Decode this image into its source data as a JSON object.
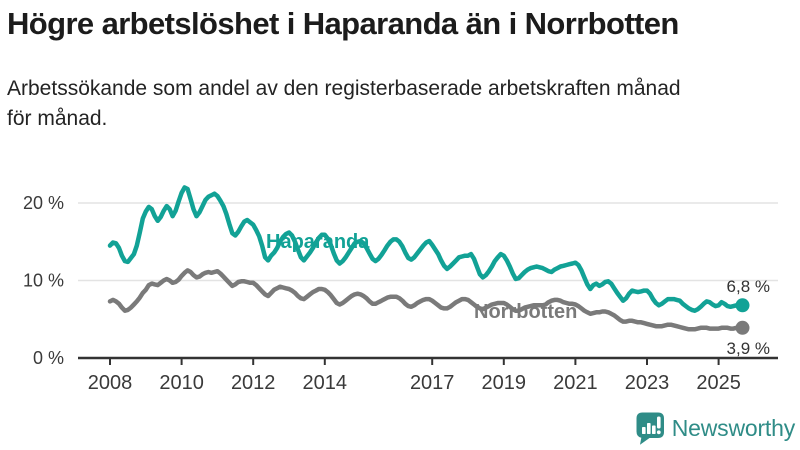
{
  "header": {
    "title": "Högre arbetslöshet i Haparanda än i Norrbotten",
    "subtitle_line1": "Arbetssökande som andel av den registerbaserade arbetskraften månad",
    "subtitle_line2": "för månad."
  },
  "footer": {
    "brand": "Newsworthy",
    "brand_color": "#2f8c87",
    "logo_icon": "newsworthy-speech-bubble-bar-chart"
  },
  "chart_data": {
    "type": "line",
    "title": "Högre arbetslöshet i Haparanda än i Norrbotten",
    "subtitle": "Arbetssökande som andel av den registerbaserade arbetskraften månad för månad.",
    "unit": "%",
    "x_frequency": "monthly",
    "x_start": "2008-01",
    "x_end": "2025-09",
    "ylim": [
      0,
      24
    ],
    "grid": "horizontal",
    "colors": {
      "haparanda": "#12a296",
      "norrbotten": "#7a7a7a",
      "gridline": "#e3e3e3",
      "axis": "#333333"
    },
    "y_ticks": [
      {
        "label": "20 %",
        "value": 20
      },
      {
        "label": "10 %",
        "value": 10
      },
      {
        "label": "0 %",
        "value": 0
      }
    ],
    "x_ticks": [
      {
        "label": "2008",
        "year": 2008
      },
      {
        "label": "2010",
        "year": 2010
      },
      {
        "label": "2012",
        "year": 2012
      },
      {
        "label": "2014",
        "year": 2014
      },
      {
        "label": "2017",
        "year": 2017
      },
      {
        "label": "2019",
        "year": 2019
      },
      {
        "label": "2021",
        "year": 2021
      },
      {
        "label": "2023",
        "year": 2023
      },
      {
        "label": "2025",
        "year": 2025
      }
    ],
    "series": [
      {
        "name": "Haparanda",
        "color": "#12a296",
        "end_label": "6,8 %",
        "end_value": 6.8,
        "values": [
          14.5,
          14.9,
          14.8,
          14.2,
          13.2,
          12.5,
          12.4,
          12.9,
          13.4,
          14.5,
          16.2,
          18.0,
          18.9,
          19.5,
          19.2,
          18.3,
          17.7,
          18.2,
          19.0,
          19.6,
          19.2,
          18.3,
          19.0,
          20.2,
          21.3,
          22.0,
          21.8,
          20.5,
          19.2,
          18.3,
          18.8,
          19.6,
          20.4,
          20.8,
          21.0,
          21.2,
          20.9,
          20.3,
          19.6,
          18.6,
          17.3,
          16.1,
          15.8,
          16.3,
          17.0,
          17.6,
          17.8,
          17.5,
          17.2,
          16.5,
          15.7,
          14.5,
          13.0,
          12.6,
          13.2,
          13.6,
          14.2,
          15.0,
          15.6,
          16.0,
          16.2,
          15.8,
          15.0,
          14.0,
          13.0,
          12.6,
          13.1,
          13.6,
          14.2,
          14.9,
          15.5,
          15.9,
          15.9,
          15.4,
          14.6,
          13.5,
          12.6,
          12.2,
          12.5,
          13.0,
          13.6,
          14.2,
          14.8,
          15.0,
          15.1,
          14.8,
          14.2,
          13.5,
          12.8,
          12.5,
          12.8,
          13.3,
          13.9,
          14.5,
          15.0,
          15.3,
          15.3,
          15.0,
          14.4,
          13.6,
          12.9,
          12.7,
          13.0,
          13.5,
          14.0,
          14.5,
          14.9,
          15.1,
          14.6,
          14.0,
          13.4,
          12.6,
          11.9,
          11.5,
          11.8,
          12.2,
          12.6,
          13.0,
          13.1,
          13.2,
          13.2,
          13.4,
          12.8,
          11.8,
          10.8,
          10.4,
          10.7,
          11.2,
          11.8,
          12.5,
          13.0,
          13.4,
          13.2,
          12.6,
          11.8,
          10.9,
          10.2,
          10.3,
          10.7,
          11.1,
          11.4,
          11.6,
          11.7,
          11.8,
          11.7,
          11.6,
          11.4,
          11.2,
          11.1,
          11.4,
          11.6,
          11.8,
          11.9,
          12.0,
          12.1,
          12.2,
          12.3,
          12.0,
          11.3,
          10.4,
          9.5,
          8.9,
          9.4,
          9.6,
          9.3,
          9.5,
          9.8,
          9.9,
          9.6,
          9.0,
          8.4,
          7.9,
          7.4,
          7.7,
          8.3,
          8.7,
          8.6,
          8.5,
          8.6,
          8.7,
          8.7,
          8.3,
          7.6,
          7.1,
          6.8,
          7.0,
          7.3,
          7.6,
          7.6,
          7.6,
          7.5,
          7.4,
          7.0,
          6.7,
          6.4,
          6.2,
          6.1,
          6.3,
          6.6,
          7.0,
          7.3,
          7.2,
          6.9,
          6.7,
          6.8,
          7.2,
          7.0,
          6.7,
          6.6,
          6.7,
          6.8,
          6.8,
          6.8
        ]
      },
      {
        "name": "Norrbotten",
        "color": "#7a7a7a",
        "end_label": "3,9 %",
        "end_value": 3.9,
        "values": [
          7.3,
          7.5,
          7.3,
          7.0,
          6.5,
          6.1,
          6.2,
          6.5,
          6.9,
          7.3,
          7.8,
          8.4,
          8.8,
          9.4,
          9.6,
          9.5,
          9.4,
          9.7,
          10.0,
          10.2,
          10.0,
          9.7,
          9.8,
          10.1,
          10.6,
          11.0,
          11.3,
          11.1,
          10.7,
          10.4,
          10.5,
          10.8,
          11.0,
          11.1,
          11.0,
          11.1,
          11.2,
          10.9,
          10.5,
          10.1,
          9.7,
          9.3,
          9.5,
          9.8,
          9.9,
          9.9,
          9.8,
          9.7,
          9.7,
          9.4,
          9.0,
          8.6,
          8.2,
          8.0,
          8.4,
          8.8,
          9.0,
          9.2,
          9.1,
          9.0,
          8.9,
          8.7,
          8.4,
          8.0,
          7.7,
          7.6,
          7.9,
          8.2,
          8.5,
          8.7,
          8.9,
          8.9,
          8.8,
          8.5,
          8.1,
          7.6,
          7.1,
          6.9,
          7.1,
          7.4,
          7.7,
          8.0,
          8.2,
          8.3,
          8.2,
          8.0,
          7.7,
          7.3,
          7.0,
          7.0,
          7.2,
          7.4,
          7.6,
          7.8,
          7.9,
          7.9,
          7.9,
          7.7,
          7.4,
          7.0,
          6.7,
          6.6,
          6.8,
          7.1,
          7.3,
          7.5,
          7.6,
          7.6,
          7.4,
          7.1,
          6.8,
          6.5,
          6.4,
          6.4,
          6.6,
          6.9,
          7.2,
          7.4,
          7.6,
          7.6,
          7.5,
          7.2,
          6.9,
          6.6,
          6.4,
          6.3,
          6.5,
          6.7,
          6.9,
          7.0,
          7.1,
          7.1,
          7.1,
          6.9,
          6.6,
          6.3,
          6.1,
          6.1,
          6.3,
          6.5,
          6.6,
          6.7,
          6.8,
          6.8,
          6.8,
          6.8,
          6.9,
          7.2,
          7.4,
          7.5,
          7.5,
          7.4,
          7.2,
          7.1,
          7.0,
          7.0,
          6.9,
          6.7,
          6.4,
          6.1,
          5.9,
          5.7,
          5.8,
          5.9,
          5.9,
          6.0,
          6.0,
          5.9,
          5.7,
          5.5,
          5.2,
          4.9,
          4.7,
          4.7,
          4.8,
          4.8,
          4.7,
          4.6,
          4.6,
          4.5,
          4.4,
          4.3,
          4.2,
          4.1,
          4.1,
          4.1,
          4.2,
          4.3,
          4.3,
          4.2,
          4.1,
          4.0,
          3.9,
          3.8,
          3.7,
          3.7,
          3.7,
          3.8,
          3.9,
          3.9,
          3.9,
          3.8,
          3.8,
          3.8,
          3.8,
          3.9,
          3.9,
          3.9,
          3.8,
          3.8,
          3.9,
          3.9,
          3.9
        ]
      }
    ]
  }
}
